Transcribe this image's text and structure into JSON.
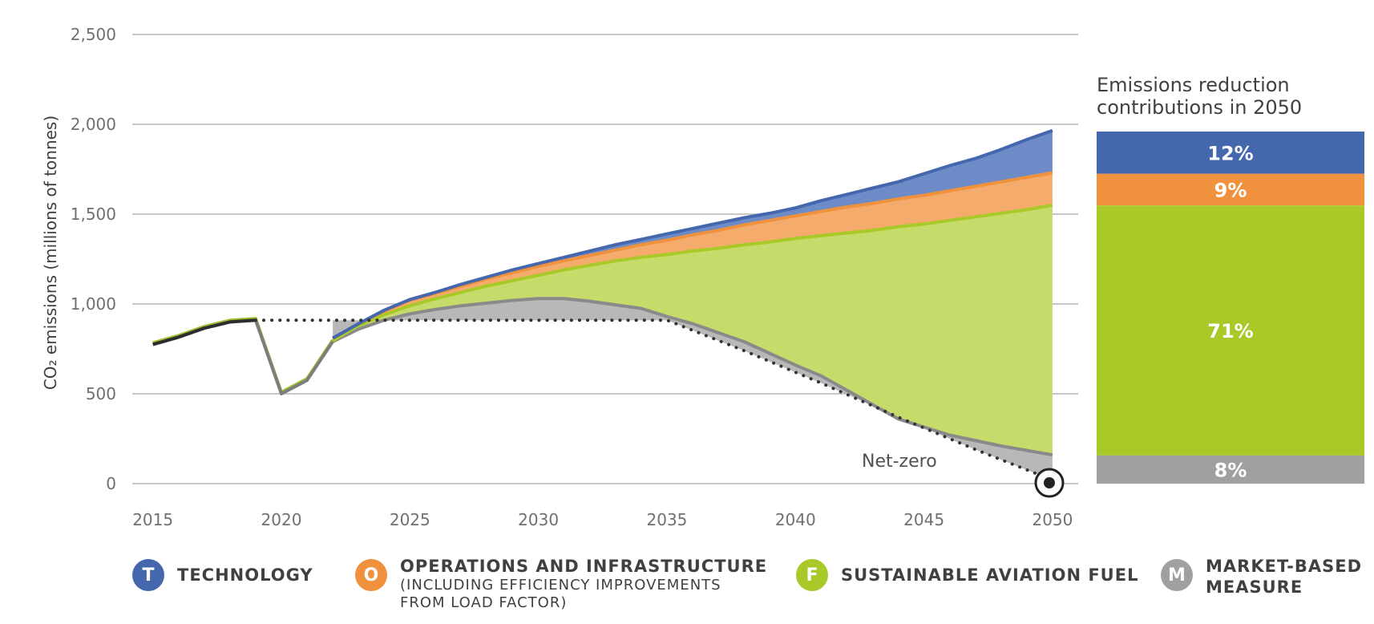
{
  "chart_data": [
    {
      "type": "area",
      "ylabel": "CO₂ emissions (millions of tonnes)",
      "ylim": [
        0,
        2500
      ],
      "yticks": [
        "2,500",
        "2,000",
        "1,500",
        "1,000",
        "500",
        "0"
      ],
      "yticks_values": [
        2500,
        2000,
        1500,
        1000,
        500,
        0
      ],
      "xticks": [
        "2015",
        "2020",
        "2025",
        "2030",
        "2035",
        "2040",
        "2045",
        "2050"
      ],
      "xlim": [
        2014.2,
        2051
      ],
      "grid": true,
      "annotation": "Net-zero",
      "historical": {
        "name": "",
        "x": [
          2015,
          2016,
          2017,
          2018,
          2019,
          2020,
          2021,
          2022
        ],
        "y": [
          775,
          815,
          865,
          900,
          910,
          500,
          575,
          790
        ]
      },
      "net_zero_path": {
        "x": [
          2019,
          2035,
          2038,
          2041,
          2044,
          2047,
          2050
        ],
        "y": [
          910,
          910,
          740,
          560,
          370,
          190,
          20
        ]
      },
      "series": [
        {
          "name": "MARKET-BASED MEASURE",
          "color": "#a0a0a0",
          "x": [
            2022,
            2023,
            2024,
            2025,
            2026,
            2027,
            2028,
            2029,
            2030,
            2031,
            2032,
            2033,
            2034,
            2035,
            2036,
            2038,
            2040,
            2041,
            2042,
            2044,
            2046,
            2048,
            2050
          ],
          "y": [
            790,
            860,
            910,
            945,
            970,
            990,
            1005,
            1020,
            1030,
            1030,
            1015,
            995,
            975,
            930,
            890,
            790,
            660,
            600,
            520,
            360,
            270,
            210,
            160
          ]
        },
        {
          "name": "SUSTAINABLE AVIATION FUEL",
          "color": "#a9c928",
          "x": [
            2022,
            2023,
            2024,
            2025,
            2026,
            2027,
            2028,
            2029,
            2030,
            2031,
            2032,
            2033,
            2034,
            2035,
            2036,
            2037,
            2038,
            2039,
            2040,
            2041,
            2042,
            2043,
            2044,
            2045,
            2046,
            2047,
            2048,
            2049,
            2050
          ],
          "y": [
            795,
            880,
            940,
            990,
            1030,
            1065,
            1100,
            1130,
            1160,
            1190,
            1215,
            1240,
            1260,
            1275,
            1295,
            1310,
            1330,
            1345,
            1365,
            1380,
            1395,
            1410,
            1430,
            1445,
            1465,
            1485,
            1505,
            1525,
            1550
          ]
        },
        {
          "name": "OPERATIONS AND INFRASTRUCTURE",
          "color": "#f0913e",
          "x": [
            2022,
            2023,
            2024,
            2025,
            2026,
            2027,
            2028,
            2029,
            2030,
            2031,
            2032,
            2033,
            2034,
            2035,
            2036,
            2037,
            2038,
            2039,
            2040,
            2041,
            2042,
            2043,
            2044,
            2045,
            2046,
            2047,
            2048,
            2049,
            2050
          ],
          "y": [
            810,
            890,
            960,
            1020,
            1060,
            1100,
            1140,
            1175,
            1210,
            1240,
            1270,
            1300,
            1330,
            1355,
            1385,
            1410,
            1440,
            1465,
            1490,
            1515,
            1540,
            1560,
            1585,
            1605,
            1630,
            1655,
            1680,
            1705,
            1730
          ]
        },
        {
          "name": "TECHNOLOGY",
          "color": "#4467ae",
          "x": [
            2022,
            2023,
            2024,
            2025,
            2026,
            2027,
            2028,
            2029,
            2030,
            2031,
            2032,
            2033,
            2034,
            2035,
            2036,
            2037,
            2038,
            2039,
            2040,
            2041,
            2042,
            2043,
            2044,
            2045,
            2046,
            2047,
            2048,
            2049,
            2050
          ],
          "y": [
            810,
            890,
            965,
            1025,
            1065,
            1110,
            1150,
            1190,
            1225,
            1260,
            1295,
            1330,
            1360,
            1390,
            1420,
            1450,
            1480,
            1505,
            1535,
            1575,
            1610,
            1645,
            1680,
            1725,
            1770,
            1810,
            1860,
            1915,
            1965
          ]
        }
      ]
    },
    {
      "type": "bar",
      "title": "Emissions reduction contributions in 2050",
      "stacked": true,
      "categories": [
        "TECHNOLOGY",
        "OPERATIONS AND INFRASTRUCTURE",
        "SUSTAINABLE AVIATION FUEL",
        "MARKET-BASED MEASURE"
      ],
      "values": [
        12,
        9,
        71,
        8
      ],
      "labels": [
        "12%",
        "9%",
        "71%",
        "8%"
      ],
      "colors": [
        "#4467ae",
        "#f0913e",
        "#a9c928",
        "#a0a0a0"
      ]
    }
  ],
  "legend": [
    {
      "badge": "T",
      "label": "TECHNOLOGY",
      "sub1": "",
      "sub2": "",
      "color": "#4467ae"
    },
    {
      "badge": "O",
      "label": "OPERATIONS AND INFRASTRUCTURE",
      "sub1": "(INCLUDING EFFICIENCY IMPROVEMENTS",
      "sub2": "FROM LOAD FACTOR)",
      "color": "#f0913e"
    },
    {
      "badge": "F",
      "label": "SUSTAINABLE AVIATION FUEL",
      "sub1": "",
      "sub2": "",
      "color": "#a9c928"
    },
    {
      "badge": "M",
      "label": "MARKET-BASED",
      "sub1": "MEASURE",
      "sub2": "",
      "color": "#a0a0a0"
    }
  ]
}
